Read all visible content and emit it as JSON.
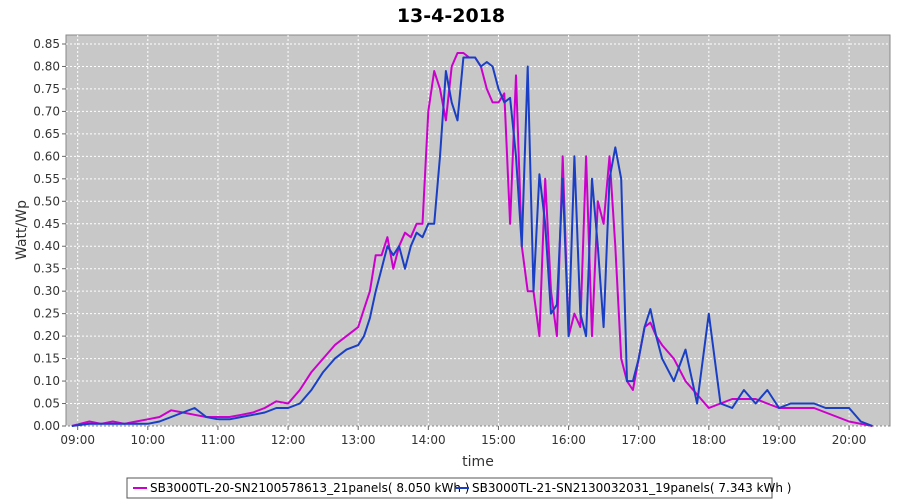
{
  "chart_data": {
    "type": "line",
    "title": "13-4-2018",
    "xlabel": "time",
    "ylabel": "Watt/Wp",
    "x_ticks": [
      "09:00",
      "10:00",
      "11:00",
      "12:00",
      "13:00",
      "14:00",
      "15:00",
      "16:00",
      "17:00",
      "18:00",
      "19:00",
      "20:00"
    ],
    "y_ticks": [
      "0.00",
      "0.05",
      "0.10",
      "0.15",
      "0.20",
      "0.25",
      "0.30",
      "0.35",
      "0.40",
      "0.45",
      "0.50",
      "0.55",
      "0.60",
      "0.65",
      "0.70",
      "0.75",
      "0.80",
      "0.85"
    ],
    "xlim": [
      "08:50",
      "20:35"
    ],
    "ylim": [
      0,
      0.87
    ],
    "grid": true,
    "legend_position": "bottom",
    "background": "#c8c8c8",
    "series": [
      {
        "name": "SB3000TL-20-SN2100578613_21panels( 8.050 kWh )",
        "color": "#cc00cc",
        "x": [
          "08:55",
          "09:10",
          "09:20",
          "09:30",
          "09:40",
          "09:50",
          "10:00",
          "10:10",
          "10:20",
          "10:30",
          "10:40",
          "10:50",
          "11:00",
          "11:10",
          "11:20",
          "11:30",
          "11:40",
          "11:50",
          "12:00",
          "12:10",
          "12:20",
          "12:30",
          "12:40",
          "12:50",
          "13:00",
          "13:05",
          "13:10",
          "13:15",
          "13:20",
          "13:25",
          "13:30",
          "13:35",
          "13:40",
          "13:45",
          "13:50",
          "13:55",
          "14:00",
          "14:05",
          "14:10",
          "14:15",
          "14:20",
          "14:25",
          "14:30",
          "14:35",
          "14:40",
          "14:45",
          "14:50",
          "14:55",
          "15:00",
          "15:05",
          "15:10",
          "15:15",
          "15:20",
          "15:25",
          "15:30",
          "15:35",
          "15:40",
          "15:45",
          "15:50",
          "15:55",
          "16:00",
          "16:05",
          "16:10",
          "16:15",
          "16:20",
          "16:25",
          "16:30",
          "16:35",
          "16:40",
          "16:45",
          "16:50",
          "16:55",
          "17:00",
          "17:05",
          "17:10",
          "17:15",
          "17:20",
          "17:30",
          "17:40",
          "17:50",
          "18:00",
          "18:10",
          "18:20",
          "18:30",
          "18:40",
          "18:50",
          "19:00",
          "19:10",
          "19:20",
          "19:30",
          "19:40",
          "19:50",
          "20:00",
          "20:10",
          "20:20"
        ],
        "y": [
          0.0,
          0.01,
          0.005,
          0.01,
          0.005,
          0.01,
          0.015,
          0.02,
          0.035,
          0.03,
          0.025,
          0.02,
          0.02,
          0.02,
          0.025,
          0.03,
          0.04,
          0.055,
          0.05,
          0.08,
          0.12,
          0.15,
          0.18,
          0.2,
          0.22,
          0.26,
          0.3,
          0.38,
          0.38,
          0.42,
          0.35,
          0.4,
          0.43,
          0.42,
          0.45,
          0.45,
          0.7,
          0.79,
          0.75,
          0.68,
          0.8,
          0.83,
          0.83,
          0.82,
          0.82,
          0.8,
          0.75,
          0.72,
          0.72,
          0.74,
          0.45,
          0.78,
          0.4,
          0.3,
          0.3,
          0.2,
          0.55,
          0.3,
          0.2,
          0.6,
          0.2,
          0.25,
          0.22,
          0.6,
          0.2,
          0.5,
          0.45,
          0.6,
          0.4,
          0.15,
          0.1,
          0.08,
          0.15,
          0.22,
          0.23,
          0.2,
          0.18,
          0.15,
          0.1,
          0.07,
          0.04,
          0.05,
          0.06,
          0.06,
          0.06,
          0.05,
          0.04,
          0.04,
          0.04,
          0.04,
          0.03,
          0.02,
          0.01,
          0.005,
          0.0
        ]
      },
      {
        "name": "SB3000TL-21-SN2130032031_19panels( 7.343 kWh )",
        "color": "#1a3fc4",
        "x": [
          "08:55",
          "09:10",
          "09:20",
          "09:30",
          "09:40",
          "09:50",
          "10:00",
          "10:10",
          "10:20",
          "10:30",
          "10:40",
          "10:50",
          "11:00",
          "11:10",
          "11:20",
          "11:30",
          "11:40",
          "11:50",
          "12:00",
          "12:10",
          "12:20",
          "12:30",
          "12:40",
          "12:50",
          "13:00",
          "13:05",
          "13:10",
          "13:15",
          "13:20",
          "13:25",
          "13:30",
          "13:35",
          "13:40",
          "13:45",
          "13:50",
          "13:55",
          "14:00",
          "14:05",
          "14:10",
          "14:15",
          "14:20",
          "14:25",
          "14:30",
          "14:35",
          "14:40",
          "14:45",
          "14:50",
          "14:55",
          "15:00",
          "15:05",
          "15:10",
          "15:15",
          "15:20",
          "15:25",
          "15:30",
          "15:35",
          "15:40",
          "15:45",
          "15:50",
          "15:55",
          "16:00",
          "16:05",
          "16:10",
          "16:15",
          "16:20",
          "16:25",
          "16:30",
          "16:35",
          "16:40",
          "16:45",
          "16:50",
          "16:55",
          "17:00",
          "17:05",
          "17:10",
          "17:15",
          "17:20",
          "17:30",
          "17:40",
          "17:50",
          "18:00",
          "18:10",
          "18:20",
          "18:30",
          "18:40",
          "18:50",
          "19:00",
          "19:10",
          "19:20",
          "19:30",
          "19:40",
          "19:50",
          "20:00",
          "20:10",
          "20:20"
        ],
        "y": [
          0.0,
          0.005,
          0.005,
          0.005,
          0.005,
          0.005,
          0.005,
          0.01,
          0.02,
          0.03,
          0.04,
          0.02,
          0.015,
          0.015,
          0.02,
          0.025,
          0.03,
          0.04,
          0.04,
          0.05,
          0.08,
          0.12,
          0.15,
          0.17,
          0.18,
          0.2,
          0.24,
          0.3,
          0.35,
          0.4,
          0.38,
          0.4,
          0.35,
          0.4,
          0.43,
          0.42,
          0.45,
          0.45,
          0.6,
          0.79,
          0.72,
          0.68,
          0.82,
          0.82,
          0.82,
          0.8,
          0.81,
          0.8,
          0.75,
          0.72,
          0.73,
          0.6,
          0.4,
          0.8,
          0.3,
          0.56,
          0.45,
          0.25,
          0.27,
          0.55,
          0.2,
          0.6,
          0.25,
          0.2,
          0.55,
          0.4,
          0.22,
          0.55,
          0.62,
          0.55,
          0.1,
          0.1,
          0.15,
          0.22,
          0.26,
          0.2,
          0.15,
          0.1,
          0.17,
          0.05,
          0.25,
          0.05,
          0.04,
          0.08,
          0.05,
          0.08,
          0.04,
          0.05,
          0.05,
          0.05,
          0.04,
          0.04,
          0.04,
          0.01,
          0.0
        ]
      }
    ]
  }
}
